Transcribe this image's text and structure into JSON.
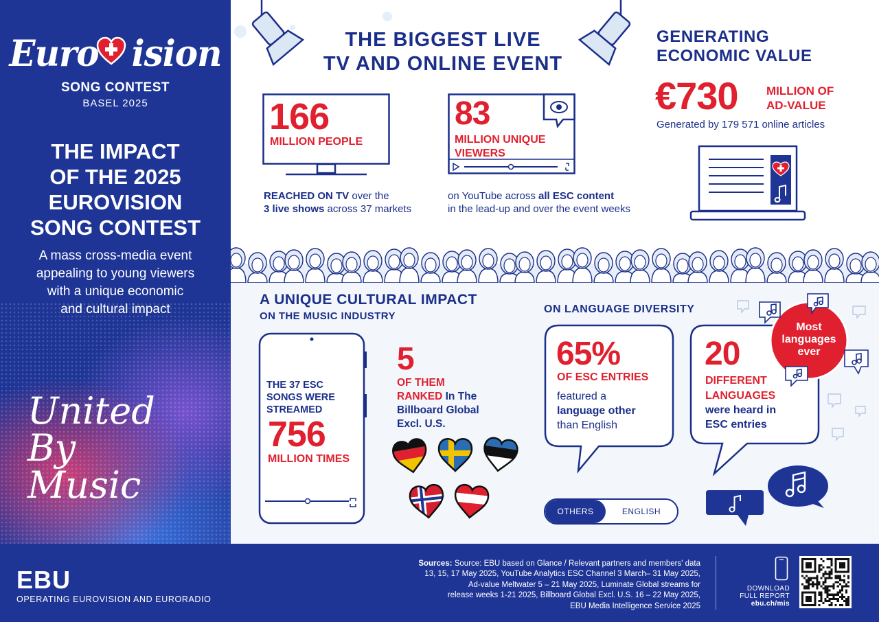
{
  "brand": {
    "logo_text": "EUROVISION",
    "logo_sub": "SONG CONTEST",
    "logo_city": "BASEL 2025"
  },
  "left": {
    "title_lines": [
      "THE IMPACT",
      "OF THE 2025",
      "EUROVISION",
      "SONG CONTEST"
    ],
    "subtitle_lines": [
      "A mass cross-media event",
      "appealing to young viewers",
      "with a unique economic",
      "and cultural impact"
    ],
    "slogan_lines": [
      "United",
      "By",
      "Music"
    ]
  },
  "main_title": {
    "line1": "THE BIGGEST LIVE",
    "line2": "TV AND ONLINE EVENT"
  },
  "tv": {
    "number": "166",
    "label": "MILLION PEOPLE",
    "desc_line1_bold": "REACHED ON TV",
    "desc_line1_rest": " over the",
    "desc_line2_bold": "3 live shows",
    "desc_line2_rest": " across 37 markets"
  },
  "youtube": {
    "number": "83",
    "label_line1": "MILLION UNIQUE",
    "label_line2": "VIEWERS",
    "desc_line1_pre": "on YouTube across ",
    "desc_line1_bold": "all ESC content",
    "desc_line2": "in the lead-up and over the event weeks"
  },
  "economic": {
    "title_line1": "GENERATING",
    "title_line2": "ECONOMIC VALUE",
    "number": "€730",
    "label_line1": "MILLION OF",
    "label_line2": "AD-VALUE",
    "note": "Generated by 179 571 online articles"
  },
  "cultural": {
    "title": "A UNIQUE CULTURAL IMPACT",
    "subtitle": "ON THE MUSIC INDUSTRY",
    "stream_intro_lines": [
      "THE 37 ESC",
      "SONGS WERE",
      "STREAMED"
    ],
    "stream_number": "756",
    "stream_label": "MILLION TIMES",
    "ranked_number": "5",
    "ranked_red_line1": "OF THEM",
    "ranked_red_line2": "RANKED",
    "ranked_rest_line2": " In The",
    "ranked_rest_line3": "Billboard Global",
    "ranked_rest_line4": "Excl. U.S.",
    "flags": [
      "germany-heart",
      "sweden-heart",
      "estonia-heart",
      "norway-heart",
      "austria-heart"
    ]
  },
  "language": {
    "title": "ON LANGUAGE DIVERSITY",
    "pct": "65%",
    "pct_label": "OF ESC ENTRIES",
    "pct_desc_line1": "featured a",
    "pct_desc_line2_bold": "language other",
    "pct_desc_line3": "than English",
    "count": "20",
    "count_label_line1": "DIFFERENT",
    "count_label_line2": "LANGUAGES",
    "count_desc_line1": "were heard in",
    "count_desc_line2": "ESC entries",
    "badge_lines": [
      "Most",
      "languages",
      "ever"
    ],
    "toggle_others": "OTHERS",
    "toggle_english": "ENGLISH"
  },
  "footer": {
    "ebu": "EBU",
    "ebu_tagline": "OPERATING EUROVISION AND EURORADIO",
    "sources_label": "Sources:",
    "sources_lines": [
      " Source: EBU based on Glance / Relevant partners and members' data",
      "13, 15, 17 May 2025, YouTube Analytics ESC Channel 3 March– 31 May 2025,",
      "Ad-value Meltwater 5 – 21 May 2025, Luminate Global streams for",
      "release weeks 1-21 2025, Billboard Global Excl. U.S. 16 – 22 May 2025,",
      "EBU Media Intelligence Service 2025"
    ],
    "download_line1": "DOWNLOAD",
    "download_line2": "FULL REPORT",
    "download_url": "ebu.ch/mis"
  },
  "colors": {
    "navy": "#1e3596",
    "ink": "#1b2f8a",
    "red": "#e0202f",
    "light_bg": "#f3f7fb"
  }
}
